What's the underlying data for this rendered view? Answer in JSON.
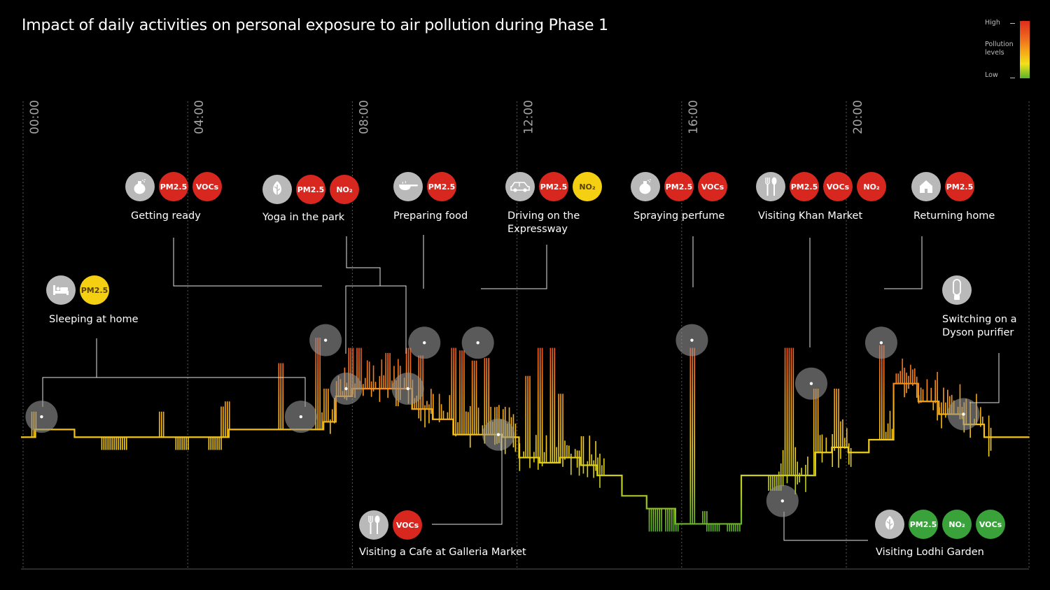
{
  "title": "Impact of daily activities on personal exposure to air pollution during Phase 1",
  "legend": {
    "high": "High",
    "mid_line1": "Pollution",
    "mid_line2": "levels",
    "low": "Low"
  },
  "colors": {
    "high": "#e02d1c",
    "mid": "#f6ac18",
    "low": "#59b52b",
    "badge_red": "#d8271f",
    "badge_yellow": "#f5cf12",
    "badge_green": "#3aa23a"
  },
  "chart_data": {
    "type": "area",
    "title": "Impact of daily activities on personal exposure to air pollution during Phase 1",
    "x_unit": "hour of day",
    "x_range": [
      0,
      24.5
    ],
    "y_label": "Pollution levels",
    "y_range": [
      0,
      1
    ],
    "y_scale_labels": [
      "Low",
      "High"
    ],
    "hour_ticks": [
      {
        "hour": 0,
        "label": "00:00"
      },
      {
        "hour": 4,
        "label": "04:00"
      },
      {
        "hour": 8,
        "label": "08:00"
      },
      {
        "hour": 12,
        "label": "12:00"
      },
      {
        "hour": 16,
        "label": "16:00"
      },
      {
        "hour": 20,
        "label": "20:00"
      }
    ],
    "baseline": [
      [
        0.0,
        0.41
      ],
      [
        0.33,
        0.44
      ],
      [
        1.3,
        0.41
      ],
      [
        2.7,
        0.41
      ],
      [
        3.9,
        0.41
      ],
      [
        4.4,
        0.41
      ],
      [
        5.0,
        0.44
      ],
      [
        5.7,
        0.44
      ],
      [
        6.9,
        0.44
      ],
      [
        7.3,
        0.47
      ],
      [
        7.6,
        0.57
      ],
      [
        8.0,
        0.6
      ],
      [
        9.0,
        0.6
      ],
      [
        9.5,
        0.52
      ],
      [
        10.0,
        0.48
      ],
      [
        10.5,
        0.42
      ],
      [
        10.9,
        0.42
      ],
      [
        11.7,
        0.41
      ],
      [
        12.1,
        0.33
      ],
      [
        12.6,
        0.31
      ],
      [
        13.1,
        0.33
      ],
      [
        13.6,
        0.3
      ],
      [
        14.0,
        0.26
      ],
      [
        14.6,
        0.18
      ],
      [
        15.2,
        0.13
      ],
      [
        15.9,
        0.07
      ],
      [
        16.3,
        0.07
      ],
      [
        17.0,
        0.07
      ],
      [
        17.5,
        0.26
      ],
      [
        18.2,
        0.26
      ],
      [
        18.9,
        0.26
      ],
      [
        19.3,
        0.35
      ],
      [
        19.7,
        0.37
      ],
      [
        20.1,
        0.35
      ],
      [
        20.6,
        0.4
      ],
      [
        21.2,
        0.62
      ],
      [
        21.8,
        0.55
      ],
      [
        22.3,
        0.5
      ],
      [
        22.9,
        0.46
      ],
      [
        23.4,
        0.41
      ],
      [
        24.5,
        0.41
      ]
    ],
    "peaks": [
      {
        "hour": 0.3,
        "value": 0.51
      },
      {
        "hour": 3.4,
        "value": 0.51
      },
      {
        "hour": 4.9,
        "value": 0.53
      },
      {
        "hour": 5.0,
        "value": 0.55
      },
      {
        "hour": 6.3,
        "value": 0.7
      },
      {
        "hour": 7.2,
        "value": 0.8
      },
      {
        "hour": 7.4,
        "value": 0.6
      },
      {
        "hour": 8.0,
        "value": 0.76
      },
      {
        "hour": 8.2,
        "value": 0.76
      },
      {
        "hour": 8.9,
        "value": 0.74
      },
      {
        "hour": 9.4,
        "value": 0.76
      },
      {
        "hour": 9.7,
        "value": 0.73
      },
      {
        "hour": 10.5,
        "value": 0.76
      },
      {
        "hour": 10.7,
        "value": 0.75
      },
      {
        "hour": 11.0,
        "value": 0.71
      },
      {
        "hour": 11.3,
        "value": 0.72
      },
      {
        "hour": 12.3,
        "value": 0.65
      },
      {
        "hour": 12.6,
        "value": 0.76
      },
      {
        "hour": 12.9,
        "value": 0.76
      },
      {
        "hour": 13.1,
        "value": 0.58
      },
      {
        "hour": 16.3,
        "value": 0.76
      },
      {
        "hour": 16.6,
        "value": 0.12
      },
      {
        "hour": 18.6,
        "value": 0.76
      },
      {
        "hour": 18.7,
        "value": 0.76
      },
      {
        "hour": 19.3,
        "value": 0.6
      },
      {
        "hour": 19.8,
        "value": 0.6
      },
      {
        "hour": 20.9,
        "value": 0.77
      }
    ],
    "troughs": [
      {
        "hour": 2.1,
        "value": 0.36
      },
      {
        "hour": 2.4,
        "value": 0.36
      },
      {
        "hour": 3.9,
        "value": 0.36
      },
      {
        "hour": 4.7,
        "value": 0.36
      },
      {
        "hour": 15.4,
        "value": 0.04
      },
      {
        "hour": 15.8,
        "value": 0.04
      },
      {
        "hour": 16.8,
        "value": 0.04
      },
      {
        "hour": 17.3,
        "value": 0.04
      },
      {
        "hour": 18.3,
        "value": 0.2
      }
    ],
    "markers": [
      {
        "name": "Sleeping at home",
        "hour": 0.5,
        "value": 0.49
      },
      {
        "name": "Sleeping at home",
        "hour": 6.8,
        "value": 0.49
      },
      {
        "name": "Getting ready",
        "hour": 7.4,
        "value": 0.79
      },
      {
        "name": "Yoga in the park",
        "hour": 7.9,
        "value": 0.6
      },
      {
        "name": "Yoga in the park",
        "hour": 9.4,
        "value": 0.6
      },
      {
        "name": "Preparing food",
        "hour": 9.8,
        "value": 0.78
      },
      {
        "name": "Driving on the Expressway",
        "hour": 11.1,
        "value": 0.78
      },
      {
        "name": "Visiting a Cafe at Galleria Market",
        "hour": 11.6,
        "value": 0.42
      },
      {
        "name": "Spraying perfume",
        "hour": 16.3,
        "value": 0.79
      },
      {
        "name": "Visiting Lodhi Garden",
        "hour": 18.5,
        "value": 0.16
      },
      {
        "name": "Visiting Khan Market",
        "hour": 19.2,
        "value": 0.62
      },
      {
        "name": "Returning home",
        "hour": 20.9,
        "value": 0.78
      },
      {
        "name": "Switching on a Dyson purifier",
        "hour": 22.9,
        "value": 0.5
      }
    ]
  },
  "activities": [
    {
      "id": "sleeping",
      "line1": "Sleeping at home",
      "line2": "",
      "icon": "bed-icon",
      "pollutants": [
        {
          "label": "PM2.5",
          "level": "yellow"
        }
      ]
    },
    {
      "id": "getting-ready",
      "line1": "Getting ready",
      "line2": "",
      "icon": "perfume-bottle-icon",
      "pollutants": [
        {
          "label": "PM2.5",
          "level": "red"
        },
        {
          "label": "VOCs",
          "level": "red"
        }
      ]
    },
    {
      "id": "yoga",
      "line1": "Yoga in the park",
      "line2": "",
      "icon": "leaf-icon",
      "pollutants": [
        {
          "label": "PM2.5",
          "level": "red"
        },
        {
          "label": "NO₂",
          "level": "red"
        }
      ]
    },
    {
      "id": "preparing-food",
      "line1": "Preparing food",
      "line2": "",
      "icon": "frying-pan-icon",
      "pollutants": [
        {
          "label": "PM2.5",
          "level": "red"
        }
      ]
    },
    {
      "id": "driving",
      "line1": "Driving on the",
      "line2": "Expressway",
      "icon": "car-icon",
      "pollutants": [
        {
          "label": "PM2.5",
          "level": "red"
        },
        {
          "label": "NO₂",
          "level": "yellow"
        }
      ]
    },
    {
      "id": "perfume",
      "line1": "Spraying perfume",
      "line2": "",
      "icon": "perfume-bottle-icon",
      "pollutants": [
        {
          "label": "PM2.5",
          "level": "red"
        },
        {
          "label": "VOCs",
          "level": "red"
        }
      ]
    },
    {
      "id": "khan-market",
      "line1": "Visiting Khan Market",
      "line2": "",
      "icon": "fork-spoon-icon",
      "pollutants": [
        {
          "label": "PM2.5",
          "level": "red"
        },
        {
          "label": "VOCs",
          "level": "red"
        },
        {
          "label": "NO₂",
          "level": "red"
        }
      ]
    },
    {
      "id": "returning-home",
      "line1": "Returning home",
      "line2": "",
      "icon": "house-icon",
      "pollutants": [
        {
          "label": "PM2.5",
          "level": "red"
        }
      ]
    },
    {
      "id": "dyson",
      "line1": "Switching on a",
      "line2": "Dyson purifier",
      "icon": "air-purifier-icon",
      "pollutants": []
    },
    {
      "id": "cafe",
      "line1": "Visiting a Cafe at Galleria Market",
      "line2": "",
      "icon": "fork-spoon-icon",
      "pollutants": [
        {
          "label": "VOCs",
          "level": "red"
        }
      ]
    },
    {
      "id": "lodhi-garden",
      "line1": "Visiting Lodhi Garden",
      "line2": "",
      "icon": "leaf-icon",
      "pollutants": [
        {
          "label": "PM2.5",
          "level": "green"
        },
        {
          "label": "NO₂",
          "level": "green"
        },
        {
          "label": "VOCs",
          "level": "green"
        }
      ]
    }
  ]
}
